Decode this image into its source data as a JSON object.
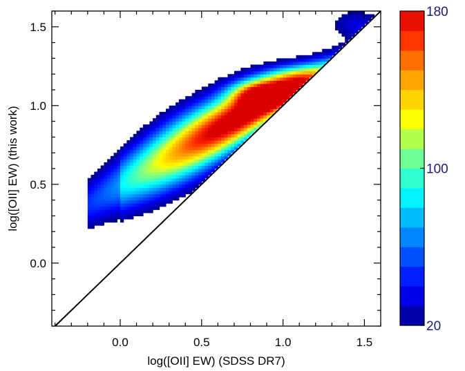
{
  "chart_data": {
    "type": "heatmap",
    "title": "",
    "xlabel": "log([OII] EW) (SDSS DR7)",
    "ylabel": "log([OII] EW)  (this work)",
    "xlim": [
      -0.42,
      1.6
    ],
    "ylim": [
      -0.4,
      1.6
    ],
    "x_ticks": [
      0.0,
      0.5,
      1.0,
      1.5
    ],
    "x_tick_labels": [
      "0.0",
      "0.5",
      "1.0",
      "1.5"
    ],
    "y_ticks": [
      0.0,
      0.5,
      1.0,
      1.5
    ],
    "y_tick_labels": [
      "0.0",
      "0.5",
      "1.0",
      "1.5"
    ],
    "reference_line": {
      "label": "one-to-one",
      "slope": 1,
      "intercept": 0
    },
    "density_ridge": [
      {
        "x": -0.15,
        "y": 0.4,
        "density": 20
      },
      {
        "x": 0.0,
        "y": 0.5,
        "density": 45
      },
      {
        "x": 0.2,
        "y": 0.62,
        "density": 70
      },
      {
        "x": 0.4,
        "y": 0.78,
        "density": 100
      },
      {
        "x": 0.6,
        "y": 0.95,
        "density": 140
      },
      {
        "x": 0.8,
        "y": 1.08,
        "density": 180
      },
      {
        "x": 0.95,
        "y": 1.13,
        "density": 165
      },
      {
        "x": 1.1,
        "y": 1.22,
        "density": 140
      },
      {
        "x": 1.3,
        "y": 1.38,
        "density": 110
      },
      {
        "x": 1.5,
        "y": 1.55,
        "density": 90
      }
    ],
    "colorbar": {
      "min": 20,
      "max": 180,
      "levels": 16,
      "tick_values": [
        20,
        100,
        180
      ],
      "tick_labels": [
        "20",
        "100",
        "180"
      ]
    }
  }
}
